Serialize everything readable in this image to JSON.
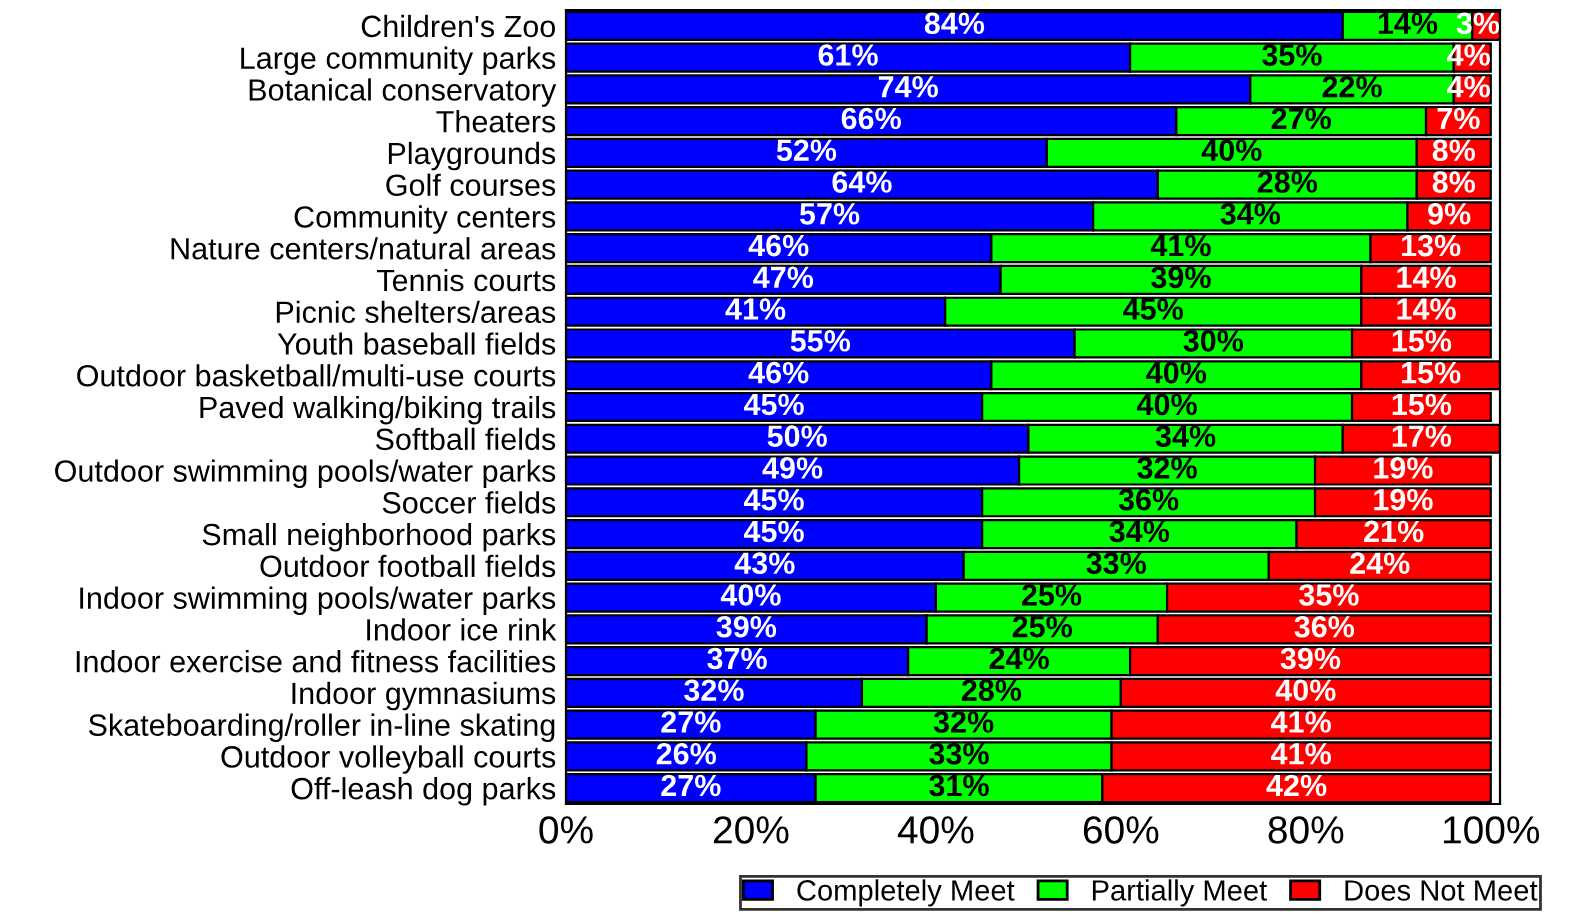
{
  "chart_data": {
    "type": "bar",
    "orientation": "horizontal",
    "stacked": true,
    "categories": [
      "Children's Zoo",
      "Large community parks",
      "Botanical conservatory",
      "Theaters",
      "Playgrounds",
      "Golf courses",
      "Community centers",
      "Nature centers/natural areas",
      "Tennis courts",
      "Picnic shelters/areas",
      "Youth baseball fields",
      "Outdoor basketball/multi-use courts",
      "Paved walking/biking trails",
      "Softball fields",
      "Outdoor swimming pools/water parks",
      "Soccer fields",
      "Small neighborhood parks",
      "Outdoor football fields",
      "Indoor swimming pools/water parks",
      "Indoor ice rink",
      "Indoor exercise and fitness facilities",
      "Indoor gymnasiums",
      "Skateboarding/roller in-line skating",
      "Outdoor volleyball courts",
      "Off-leash dog parks"
    ],
    "series": [
      {
        "name": "Completely Meet",
        "color": "#0000ff",
        "values": [
          84,
          61,
          74,
          66,
          52,
          64,
          57,
          46,
          47,
          41,
          55,
          46,
          45,
          50,
          49,
          45,
          45,
          43,
          40,
          39,
          37,
          32,
          27,
          26,
          27
        ],
        "value_labels": [
          "84%",
          "61%",
          "74%",
          "66%",
          "52%",
          "64%",
          "57%",
          "46%",
          "47%",
          "41%",
          "55%",
          "46%",
          "45%",
          "50%",
          "49%",
          "45%",
          "45%",
          "43%",
          "40%",
          "39%",
          "37%",
          "32%",
          "27%",
          "26%",
          "27%"
        ]
      },
      {
        "name": "Partially Meet",
        "color": "#00ff00",
        "values": [
          14,
          35,
          22,
          27,
          40,
          28,
          34,
          41,
          39,
          45,
          30,
          40,
          40,
          34,
          32,
          36,
          34,
          33,
          25,
          25,
          24,
          28,
          32,
          33,
          31
        ],
        "value_labels": [
          "14%",
          "35%",
          "22%",
          "27%",
          "40%",
          "28%",
          "34%",
          "41%",
          "39%",
          "45%",
          "30%",
          "40%",
          "40%",
          "34%",
          "32%",
          "36%",
          "34%",
          "33%",
          "25%",
          "25%",
          "24%",
          "28%",
          "32%",
          "33%",
          "31%"
        ]
      },
      {
        "name": "Does Not Meet",
        "color": "#ff0000",
        "values": [
          3,
          4,
          4,
          7,
          8,
          8,
          9,
          13,
          14,
          14,
          15,
          15,
          15,
          17,
          19,
          19,
          21,
          24,
          35,
          36,
          39,
          40,
          41,
          41,
          42
        ],
        "value_labels": [
          "3%",
          "4%",
          "4%",
          "7%",
          "8%",
          "8%",
          "9%",
          "13%",
          "14%",
          "14%",
          "15%",
          "15%",
          "15%",
          "17%",
          "19%",
          "19%",
          "21%",
          "24%",
          "35%",
          "36%",
          "39%",
          "40%",
          "41%",
          "41%",
          "42%"
        ]
      }
    ],
    "xlim": [
      0,
      101
    ],
    "xticks": [
      {
        "value": 0,
        "label": "0%"
      },
      {
        "value": 20,
        "label": "20%"
      },
      {
        "value": 40,
        "label": "40%"
      },
      {
        "value": 60,
        "label": "60%"
      },
      {
        "value": 80,
        "label": "80%"
      },
      {
        "value": 100,
        "label": "100%"
      }
    ],
    "grid": false,
    "legend": "bottom"
  }
}
